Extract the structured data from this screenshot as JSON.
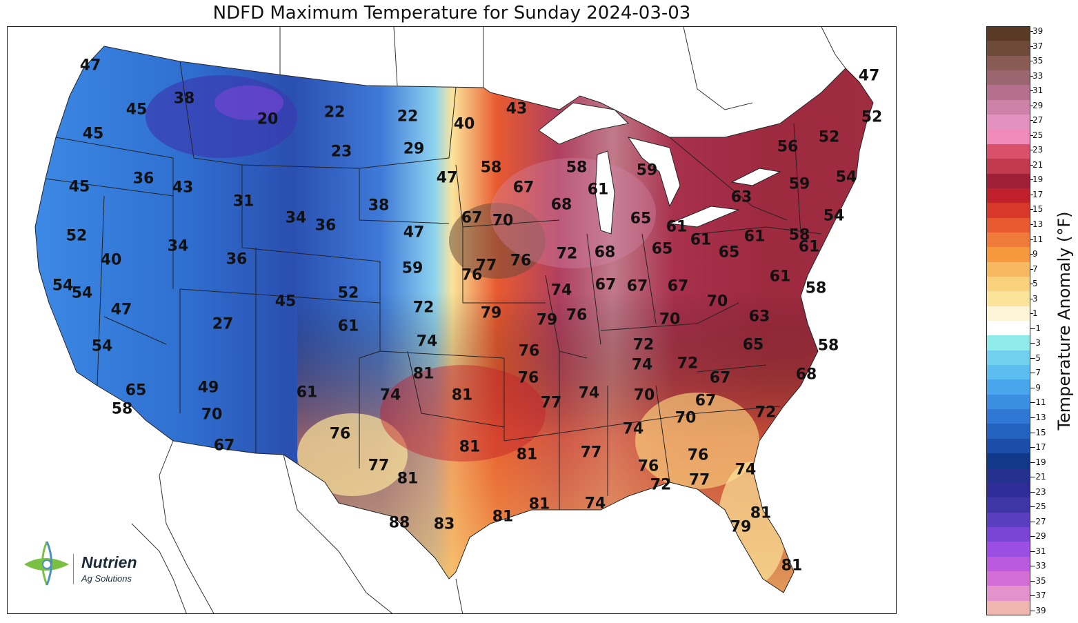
{
  "title": "NDFD Maximum Temperature for Sunday 2024-03-03",
  "colorbar": {
    "label": "Temperature Anomaly (°F)",
    "ticks": [
      "39",
      "37",
      "35",
      "33",
      "31",
      "29",
      "27",
      "25",
      "23",
      "21",
      "19",
      "17",
      "15",
      "13",
      "11",
      "9",
      "7",
      "5",
      "3",
      "1",
      "-1",
      "-3",
      "-5",
      "-7",
      "-9",
      "-11",
      "-13",
      "-15",
      "-17",
      "-19",
      "-21",
      "-23",
      "-25",
      "-27",
      "-29",
      "-31",
      "-33",
      "-35",
      "-37",
      "-39"
    ],
    "colors": [
      "#5a3a24",
      "#6e4a3a",
      "#8a5a55",
      "#9c6670",
      "#b4708c",
      "#cf82a8",
      "#e392c0",
      "#f08ab8",
      "#d8506a",
      "#c23a4e",
      "#9e1f36",
      "#c0202c",
      "#d8382a",
      "#e85a30",
      "#f07a3a",
      "#f5983e",
      "#f8b862",
      "#fad27e",
      "#fbe49a",
      "#fdf5d6",
      "#ffffff",
      "#8feaea",
      "#72d0ef",
      "#5cbdf0",
      "#4aa6ec",
      "#3b8ee2",
      "#2f78d4",
      "#2462bf",
      "#1b4ea8",
      "#12388a",
      "#24318e",
      "#2f2d98",
      "#3f36a6",
      "#5a3ec0",
      "#7a44d6",
      "#9a4ee2",
      "#bb5adf",
      "#d46ed6",
      "#e492cc",
      "#efb6b0"
    ]
  },
  "map": {
    "temps": [
      {
        "v": "47"
      },
      {
        "v": "45"
      },
      {
        "v": "38"
      },
      {
        "v": "20"
      },
      {
        "v": "22"
      },
      {
        "v": "22"
      },
      {
        "v": "45"
      },
      {
        "v": "23"
      },
      {
        "v": "29"
      },
      {
        "v": "40"
      },
      {
        "v": "43"
      },
      {
        "v": "47"
      },
      {
        "v": "52"
      },
      {
        "v": "56"
      },
      {
        "v": "52"
      },
      {
        "v": "54"
      },
      {
        "v": "59"
      },
      {
        "v": "63"
      },
      {
        "v": "45"
      },
      {
        "v": "36"
      },
      {
        "v": "43"
      },
      {
        "v": "47"
      },
      {
        "v": "58"
      },
      {
        "v": "67"
      },
      {
        "v": "58"
      },
      {
        "v": "61"
      },
      {
        "v": "59"
      },
      {
        "v": "31"
      },
      {
        "v": "34"
      },
      {
        "v": "36"
      },
      {
        "v": "38"
      },
      {
        "v": "47"
      },
      {
        "v": "67"
      },
      {
        "v": "70"
      },
      {
        "v": "68"
      },
      {
        "v": "65"
      },
      {
        "v": "61"
      },
      {
        "v": "61"
      },
      {
        "v": "61"
      },
      {
        "v": "58"
      },
      {
        "v": "61"
      },
      {
        "v": "54"
      },
      {
        "v": "52"
      },
      {
        "v": "40"
      },
      {
        "v": "34"
      },
      {
        "v": "36"
      },
      {
        "v": "59"
      },
      {
        "v": "77"
      },
      {
        "v": "76"
      },
      {
        "v": "76"
      },
      {
        "v": "72"
      },
      {
        "v": "68"
      },
      {
        "v": "65"
      },
      {
        "v": "65"
      },
      {
        "v": "54"
      },
      {
        "v": "54"
      },
      {
        "v": "47"
      },
      {
        "v": "45"
      },
      {
        "v": "52"
      },
      {
        "v": "72"
      },
      {
        "v": "74"
      },
      {
        "v": "67"
      },
      {
        "v": "67"
      },
      {
        "v": "67"
      },
      {
        "v": "61"
      },
      {
        "v": "58"
      },
      {
        "v": "79"
      },
      {
        "v": "79"
      },
      {
        "v": "76"
      },
      {
        "v": "70"
      },
      {
        "v": "70"
      },
      {
        "v": "27"
      },
      {
        "v": "61"
      },
      {
        "v": "63"
      },
      {
        "v": "54"
      },
      {
        "v": "74"
      },
      {
        "v": "76"
      },
      {
        "v": "72"
      },
      {
        "v": "65"
      },
      {
        "v": "58"
      },
      {
        "v": "81"
      },
      {
        "v": "74"
      },
      {
        "v": "72"
      },
      {
        "v": "49"
      },
      {
        "v": "65"
      },
      {
        "v": "76"
      },
      {
        "v": "67"
      },
      {
        "v": "68"
      },
      {
        "v": "61"
      },
      {
        "v": "74"
      },
      {
        "v": "81"
      },
      {
        "v": "77"
      },
      {
        "v": "74"
      },
      {
        "v": "70"
      },
      {
        "v": "67"
      },
      {
        "v": "58"
      },
      {
        "v": "70"
      },
      {
        "v": "70"
      },
      {
        "v": "72"
      },
      {
        "v": "67"
      },
      {
        "v": "76"
      },
      {
        "v": "74"
      },
      {
        "v": "81"
      },
      {
        "v": "81"
      },
      {
        "v": "77"
      },
      {
        "v": "76"
      },
      {
        "v": "76"
      },
      {
        "v": "77"
      },
      {
        "v": "81"
      },
      {
        "v": "72"
      },
      {
        "v": "77"
      },
      {
        "v": "74"
      },
      {
        "v": "74"
      },
      {
        "v": "88"
      },
      {
        "v": "83"
      },
      {
        "v": "81"
      },
      {
        "v": "81"
      },
      {
        "v": "79"
      },
      {
        "v": "81"
      },
      {
        "v": "81"
      }
    ]
  },
  "logo": {
    "name": "Nutrien",
    "subtitle": "Ag Solutions"
  }
}
